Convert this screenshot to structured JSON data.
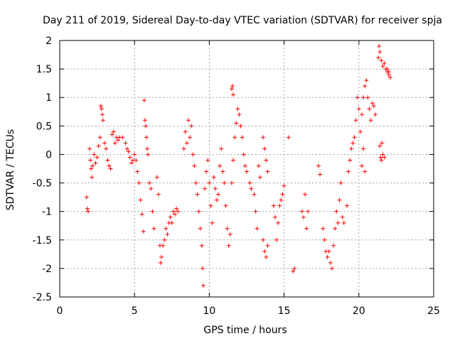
{
  "chart_data": {
    "type": "scatter",
    "title": "Day 211 of 2019, Sidereal Day-to-day VTEC variation (SDTVAR) for receiver spja",
    "xlabel": "GPS time / hours",
    "ylabel": "SDTVAR / TECUs",
    "xlim": [
      0,
      25
    ],
    "ylim": [
      -2.5,
      2
    ],
    "xticks": [
      0,
      5,
      10,
      15,
      20,
      25
    ],
    "yticks": [
      -2.5,
      -2,
      -1.5,
      -1,
      -0.5,
      0,
      0.5,
      1,
      1.5,
      2
    ],
    "xtick_labels": [
      "0",
      "5",
      "10",
      "15",
      "20",
      "25"
    ],
    "ytick_labels": [
      "-2.5",
      "-2",
      "-1.5",
      "-1",
      "-0.5",
      "0",
      "0.5",
      "1",
      "1.5",
      "2"
    ],
    "grid": true,
    "marker": "+",
    "color": "#ff0000",
    "series": [
      {
        "name": "SDTVAR",
        "points": [
          [
            1.8,
            -0.75
          ],
          [
            1.85,
            -0.95
          ],
          [
            1.9,
            -1.0
          ],
          [
            2.0,
            0.1
          ],
          [
            2.05,
            -0.1
          ],
          [
            2.1,
            -0.25
          ],
          [
            2.15,
            -0.4
          ],
          [
            2.2,
            -0.2
          ],
          [
            2.3,
            0.0
          ],
          [
            2.4,
            -0.15
          ],
          [
            2.5,
            -0.05
          ],
          [
            2.6,
            0.15
          ],
          [
            2.7,
            0.3
          ],
          [
            2.75,
            0.85
          ],
          [
            2.8,
            0.8
          ],
          [
            2.85,
            0.7
          ],
          [
            2.9,
            0.6
          ],
          [
            3.0,
            0.2
          ],
          [
            3.1,
            0.1
          ],
          [
            3.2,
            -0.1
          ],
          [
            3.3,
            -0.2
          ],
          [
            3.4,
            -0.25
          ],
          [
            3.5,
            0.35
          ],
          [
            3.6,
            0.4
          ],
          [
            3.7,
            0.2
          ],
          [
            3.8,
            0.3
          ],
          [
            3.9,
            0.25
          ],
          [
            4.0,
            0.3
          ],
          [
            4.2,
            0.3
          ],
          [
            4.4,
            0.2
          ],
          [
            4.5,
            0.1
          ],
          [
            4.6,
            0.05
          ],
          [
            4.7,
            -0.05
          ],
          [
            4.8,
            -0.15
          ],
          [
            4.9,
            -0.1
          ],
          [
            5.0,
            0.0
          ],
          [
            5.1,
            -0.1
          ],
          [
            5.2,
            -0.3
          ],
          [
            5.3,
            -0.5
          ],
          [
            5.4,
            -0.8
          ],
          [
            5.5,
            -1.05
          ],
          [
            5.6,
            -1.35
          ],
          [
            5.65,
            0.95
          ],
          [
            5.7,
            0.6
          ],
          [
            5.75,
            0.5
          ],
          [
            5.8,
            0.3
          ],
          [
            5.85,
            0.1
          ],
          [
            5.9,
            0.0
          ],
          [
            6.0,
            -0.5
          ],
          [
            6.1,
            -0.6
          ],
          [
            6.2,
            -1.0
          ],
          [
            6.3,
            -1.3
          ],
          [
            6.5,
            -0.4
          ],
          [
            6.6,
            -0.7
          ],
          [
            6.7,
            -1.6
          ],
          [
            6.75,
            -1.9
          ],
          [
            6.8,
            -1.8
          ],
          [
            6.9,
            -1.6
          ],
          [
            7.0,
            -1.5
          ],
          [
            7.1,
            -1.3
          ],
          [
            7.2,
            -1.4
          ],
          [
            7.3,
            -1.2
          ],
          [
            7.4,
            -1.1
          ],
          [
            7.5,
            -1.2
          ],
          [
            7.6,
            -1.0
          ],
          [
            7.7,
            -1.05
          ],
          [
            7.8,
            -0.95
          ],
          [
            7.9,
            -1.0
          ],
          [
            8.3,
            0.1
          ],
          [
            8.4,
            0.4
          ],
          [
            8.5,
            0.2
          ],
          [
            8.6,
            0.6
          ],
          [
            8.7,
            0.3
          ],
          [
            8.8,
            0.5
          ],
          [
            8.9,
            0.0
          ],
          [
            9.0,
            -0.2
          ],
          [
            9.1,
            -0.5
          ],
          [
            9.2,
            -0.7
          ],
          [
            9.3,
            -1.0
          ],
          [
            9.4,
            -1.3
          ],
          [
            9.5,
            -1.6
          ],
          [
            9.55,
            -2.0
          ],
          [
            9.6,
            -2.3
          ],
          [
            9.7,
            -0.6
          ],
          [
            9.8,
            -0.3
          ],
          [
            9.9,
            -0.1
          ],
          [
            10.0,
            -0.5
          ],
          [
            10.1,
            -0.9
          ],
          [
            10.2,
            -1.2
          ],
          [
            10.3,
            -0.4
          ],
          [
            10.4,
            -0.6
          ],
          [
            10.5,
            -0.8
          ],
          [
            10.6,
            -0.7
          ],
          [
            10.7,
            -0.2
          ],
          [
            10.8,
            0.1
          ],
          [
            10.9,
            -0.3
          ],
          [
            11.0,
            -0.5
          ],
          [
            11.1,
            -0.9
          ],
          [
            11.2,
            -1.3
          ],
          [
            11.3,
            -1.6
          ],
          [
            11.4,
            -1.4
          ],
          [
            11.5,
            -0.5
          ],
          [
            11.6,
            -0.1
          ],
          [
            11.7,
            0.3
          ],
          [
            11.8,
            0.55
          ],
          [
            11.9,
            0.8
          ],
          [
            12.0,
            0.7
          ],
          [
            12.1,
            0.5
          ],
          [
            12.2,
            0.3
          ],
          [
            12.3,
            0.0
          ],
          [
            12.4,
            -0.2
          ],
          [
            12.5,
            -0.3
          ],
          [
            11.5,
            1.15
          ],
          [
            11.55,
            1.2
          ],
          [
            11.6,
            1.05
          ],
          [
            12.7,
            -0.5
          ],
          [
            12.8,
            -0.6
          ],
          [
            13.0,
            -0.7
          ],
          [
            13.1,
            -1.0
          ],
          [
            13.2,
            -1.3
          ],
          [
            13.3,
            -0.2
          ],
          [
            13.4,
            -0.4
          ],
          [
            13.6,
            0.3
          ],
          [
            13.7,
            0.1
          ],
          [
            13.8,
            -0.1
          ],
          [
            13.9,
            -0.3
          ],
          [
            13.6,
            -1.5
          ],
          [
            13.7,
            -1.7
          ],
          [
            13.8,
            -1.8
          ],
          [
            13.9,
            -1.6
          ],
          [
            14.3,
            -0.9
          ],
          [
            14.4,
            -1.1
          ],
          [
            14.5,
            -1.5
          ],
          [
            14.6,
            -1.2
          ],
          [
            14.7,
            -0.9
          ],
          [
            14.8,
            -0.8
          ],
          [
            14.9,
            -0.7
          ],
          [
            15.0,
            -0.55
          ],
          [
            15.3,
            0.3
          ],
          [
            15.6,
            -2.05
          ],
          [
            15.7,
            -2.0
          ],
          [
            16.2,
            -1.0
          ],
          [
            16.3,
            -1.1
          ],
          [
            16.4,
            -0.7
          ],
          [
            16.5,
            -1.3
          ],
          [
            16.6,
            -1.0
          ],
          [
            17.3,
            -0.2
          ],
          [
            17.4,
            -0.35
          ],
          [
            17.6,
            -1.3
          ],
          [
            17.7,
            -1.5
          ],
          [
            17.8,
            -1.7
          ],
          [
            17.9,
            -1.8
          ],
          [
            18.0,
            -1.7
          ],
          [
            18.1,
            -1.9
          ],
          [
            18.2,
            -2.0
          ],
          [
            18.3,
            -1.6
          ],
          [
            18.4,
            -1.3
          ],
          [
            18.5,
            -1.0
          ],
          [
            18.6,
            -1.2
          ],
          [
            18.7,
            -0.8
          ],
          [
            18.8,
            -0.5
          ],
          [
            18.9,
            -1.1
          ],
          [
            19.0,
            -1.2
          ],
          [
            19.2,
            -0.9
          ],
          [
            19.3,
            -0.3
          ],
          [
            19.4,
            -0.1
          ],
          [
            19.5,
            0.1
          ],
          [
            19.6,
            0.2
          ],
          [
            19.7,
            0.3
          ],
          [
            19.8,
            0.6
          ],
          [
            19.9,
            1.0
          ],
          [
            20.0,
            0.8
          ],
          [
            20.1,
            0.4
          ],
          [
            20.2,
            0.7
          ],
          [
            20.3,
            1.0
          ],
          [
            20.4,
            1.2
          ],
          [
            20.5,
            1.3
          ],
          [
            20.6,
            1.0
          ],
          [
            20.7,
            0.8
          ],
          [
            20.8,
            0.6
          ],
          [
            20.9,
            0.9
          ],
          [
            21.0,
            0.85
          ],
          [
            21.1,
            0.7
          ],
          [
            20.2,
            -0.2
          ],
          [
            20.3,
            0.1
          ],
          [
            20.4,
            -0.3
          ],
          [
            21.4,
            0.15
          ],
          [
            21.45,
            -0.05
          ],
          [
            21.5,
            -0.1
          ],
          [
            21.55,
            0.2
          ],
          [
            21.6,
            0.0
          ],
          [
            21.7,
            -0.05
          ],
          [
            21.3,
            1.7
          ],
          [
            21.35,
            1.9
          ],
          [
            21.4,
            1.8
          ],
          [
            21.5,
            1.65
          ],
          [
            21.6,
            1.55
          ],
          [
            21.7,
            1.6
          ],
          [
            21.8,
            1.5
          ],
          [
            21.9,
            1.45
          ],
          [
            22.0,
            1.4
          ],
          [
            22.1,
            1.35
          ],
          [
            21.9,
            1.5
          ],
          [
            22.0,
            1.45
          ]
        ]
      }
    ]
  }
}
